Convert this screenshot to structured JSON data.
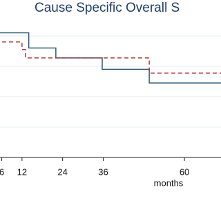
{
  "chart_data": {
    "type": "line",
    "step": true,
    "title": "Cause Specific Overall S",
    "x_label": "months",
    "xlim": [
      5.5,
      70.8
    ],
    "xticks": [
      6,
      12,
      24,
      36,
      60
    ],
    "ylim": [
      0,
      1.036
    ],
    "grid_y": [
      0.2,
      0.4,
      0.6,
      0.8
    ],
    "series": [
      {
        "color": "#2e5b78",
        "style": "solid",
        "x": [
          0,
          14,
          22,
          35.7,
          49.6,
          72
        ],
        "values": [
          0.82,
          0.72,
          0.655,
          0.58,
          0.49,
          0.49
        ]
      },
      {
        "color": "#b23a3a",
        "style": "dashed",
        "x": [
          0,
          12,
          13,
          49.6,
          72
        ],
        "values": [
          0.76,
          0.71,
          0.655,
          0.555,
          0.555
        ]
      }
    ]
  }
}
